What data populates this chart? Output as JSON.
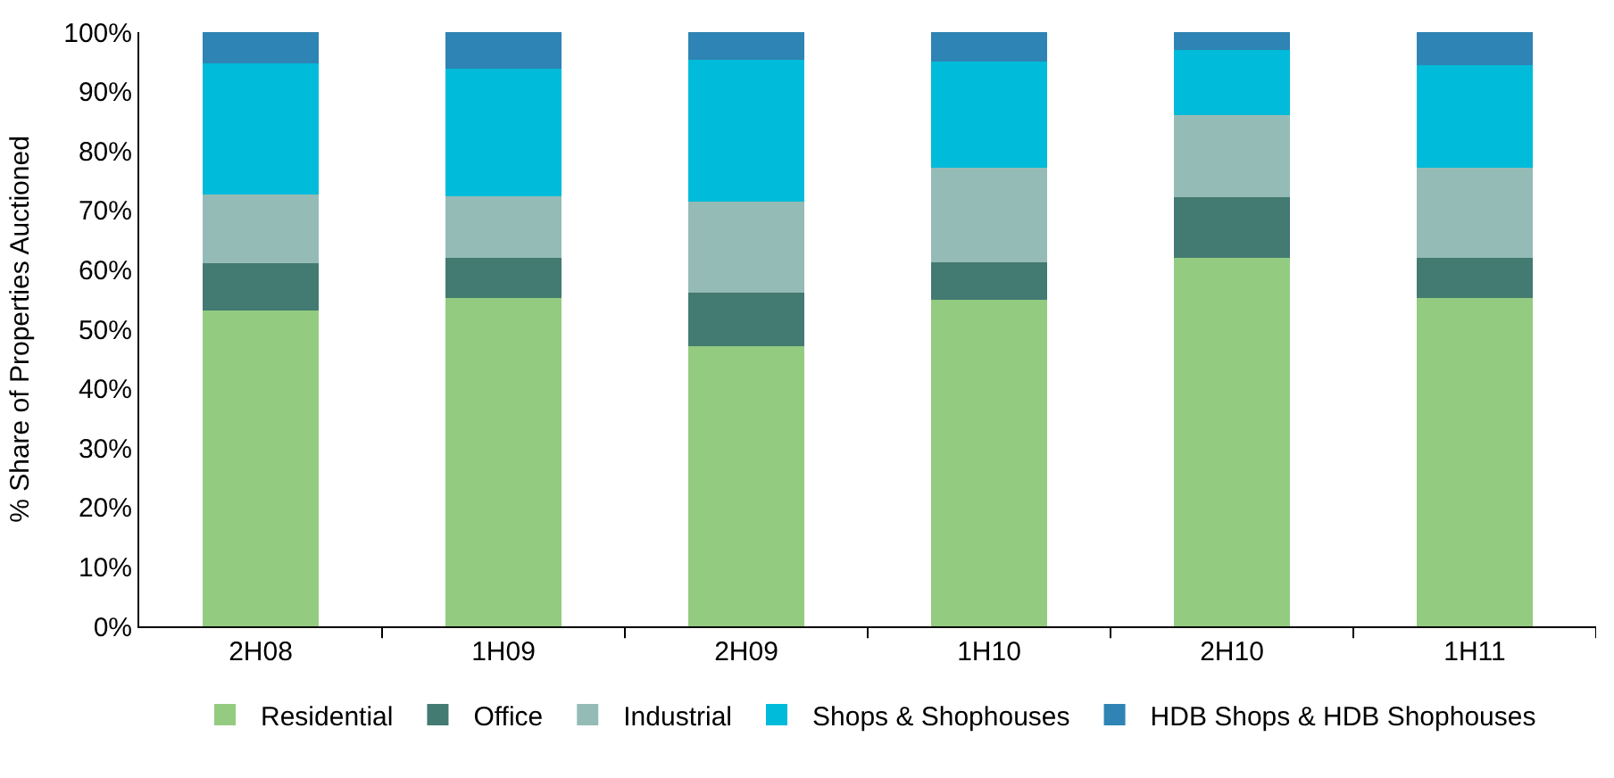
{
  "chart_data": {
    "type": "bar",
    "stacked": true,
    "ylabel": "% Share of Properties Auctioned",
    "categories": [
      "2H08",
      "1H09",
      "2H09",
      "1H10",
      "2H10",
      "1H11"
    ],
    "series": [
      {
        "name": "Residential",
        "color": "#93cb80",
        "values": [
          53.1,
          55.2,
          47.2,
          54.9,
          62.0,
          55.2
        ]
      },
      {
        "name": "Office",
        "color": "#437a72",
        "values": [
          8.0,
          6.8,
          8.9,
          6.3,
          10.2,
          6.8
        ]
      },
      {
        "name": "Industrial",
        "color": "#95bbb6",
        "values": [
          11.6,
          10.4,
          15.4,
          16.0,
          13.9,
          15.2
        ]
      },
      {
        "name": "Shops & Shophouses",
        "color": "#00bbd9",
        "values": [
          22.0,
          21.4,
          23.8,
          17.8,
          10.9,
          17.2
        ]
      },
      {
        "name": "HDB Shops & HDB Shophouses",
        "color": "#2e84b4",
        "values": [
          5.3,
          6.2,
          4.7,
          5.0,
          3.0,
          5.6
        ]
      }
    ],
    "ylim": [
      0,
      100
    ],
    "yticks": [
      {
        "value": 0,
        "label": "0%"
      },
      {
        "value": 10,
        "label": "10%"
      },
      {
        "value": 20,
        "label": "20%"
      },
      {
        "value": 30,
        "label": "30%"
      },
      {
        "value": 40,
        "label": "40%"
      },
      {
        "value": 50,
        "label": "50%"
      },
      {
        "value": 60,
        "label": "60%"
      },
      {
        "value": 70,
        "label": "70%"
      },
      {
        "value": 80,
        "label": "80%"
      },
      {
        "value": 90,
        "label": "90%"
      },
      {
        "value": 100,
        "label": "100%"
      }
    ],
    "legend": "bottom"
  }
}
